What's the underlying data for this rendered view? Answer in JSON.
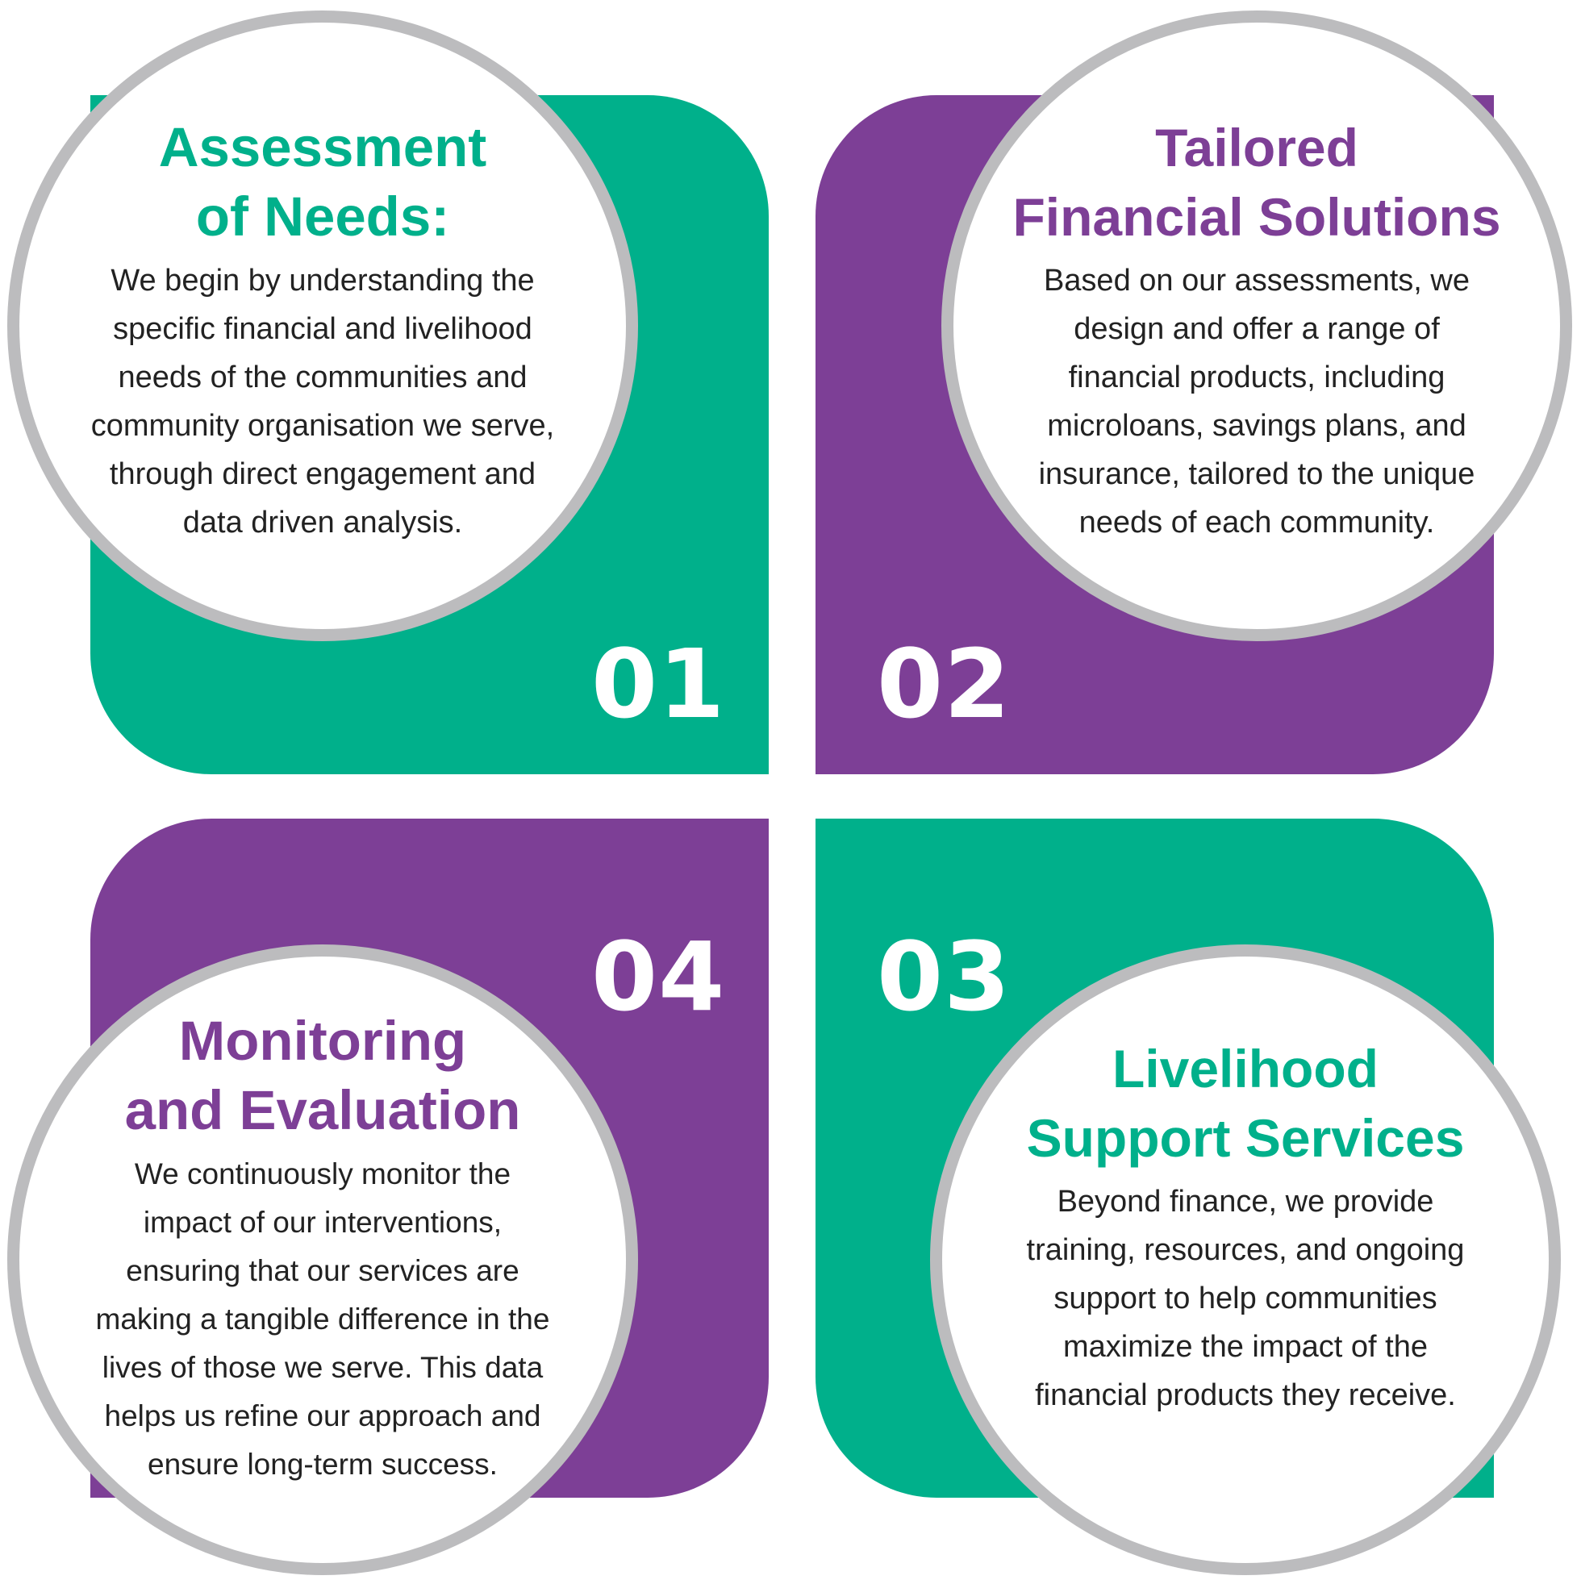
{
  "colors": {
    "teal": "#00b08b",
    "purple": "#7d3f96",
    "ring": "#bcbcbe"
  },
  "steps": [
    {
      "number": "01",
      "title": "Assessment\nof Needs:",
      "body": "We begin by understanding the\nspecific financial and livelihood\nneeds of the communities and\ncommunity organisation we serve,\nthrough direct engagement and\ndata driven analysis.",
      "color": "#00b08b"
    },
    {
      "number": "02",
      "title": "Tailored\nFinancial Solutions",
      "body": "Based on our assessments, we\ndesign and offer a range of\nfinancial products, including\nmicroloans, savings plans, and\ninsurance, tailored to the unique\nneeds of each community.",
      "color": "#7d3f96"
    },
    {
      "number": "03",
      "title": "Livelihood\nSupport Services",
      "body": "Beyond finance, we provide\ntraining, resources, and ongoing\nsupport to help communities\nmaximize the impact of the\nfinancial products they receive.",
      "color": "#00b08b"
    },
    {
      "number": "04",
      "title": "Monitoring\nand Evaluation",
      "body": "We continuously monitor the\nimpact of our interventions,\nensuring that our services are\nmaking a tangible difference in the\nlives of those we serve. This data\nhelps us refine our approach and\nensure long-term success.",
      "color": "#7d3f96"
    }
  ]
}
